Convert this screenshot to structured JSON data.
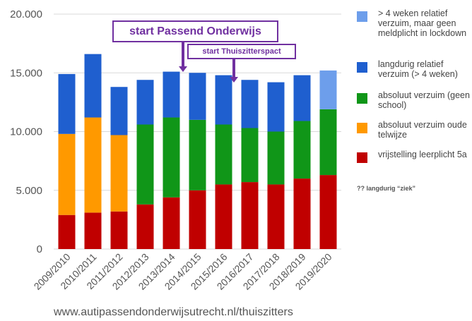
{
  "chart_data": {
    "type": "bar",
    "stacked": true,
    "categories": [
      "2009/2010",
      "2010/2011",
      "2011/2012",
      "2012/2013",
      "2013/2014",
      "2014/2015",
      "2015/2016",
      "2016/2017",
      "2017/2018",
      "2018/2019",
      "2019/2020"
    ],
    "ylim": [
      0,
      20000
    ],
    "yticks": [
      "0",
      "5.000",
      "10.000",
      "15.000",
      "20.000"
    ],
    "ytick_values": [
      0,
      5000,
      10000,
      15000,
      20000
    ],
    "grid": true,
    "legend_position": "right",
    "series": [
      {
        "name": "vrijstelling leerplicht 5a",
        "color": "#c00000",
        "values": [
          2900,
          3100,
          3200,
          3800,
          4400,
          5000,
          5500,
          5700,
          5500,
          6000,
          6300
        ]
      },
      {
        "name": "absoluut verzuim oude telwijze",
        "color": "#ff9900",
        "values": [
          6900,
          8100,
          6500,
          0,
          0,
          0,
          0,
          0,
          0,
          0,
          0
        ]
      },
      {
        "name": "absoluut verzuim (geen school)",
        "color": "#109618",
        "values": [
          0,
          0,
          0,
          6800,
          6800,
          6000,
          5100,
          4600,
          4500,
          4900,
          5600
        ]
      },
      {
        "name": "langdurig relatief verzuim (> 4 weken)",
        "color": "#1f5fcf",
        "values": [
          5100,
          5400,
          4100,
          3800,
          3900,
          4000,
          4200,
          4100,
          4200,
          3900,
          0
        ]
      },
      {
        "name": "> 4 weken relatief verzuim, maar geen meldplicht in lockdown",
        "color": "#6d9eeb",
        "values": [
          0,
          0,
          0,
          0,
          0,
          0,
          0,
          0,
          0,
          0,
          3300
        ]
      }
    ],
    "annotations": [
      {
        "text": "start Passend Onderwijs",
        "at_category": "2014/2015"
      },
      {
        "text": "start Thuiszitterspact",
        "at_category": "2016/2017"
      }
    ]
  },
  "legend": {
    "items": [
      {
        "label": "> 4 weken relatief verzuim, maar geen meldplicht in lockdown",
        "color": "#6d9eeb"
      },
      {
        "label": "langdurig relatief verzuim (> 4 weken)",
        "color": "#1f5fcf"
      },
      {
        "label": "absoluut verzuim (geen school)",
        "color": "#109618"
      },
      {
        "label": "absoluut verzuim oude telwijze",
        "color": "#ff9900"
      },
      {
        "label": "vrijstelling leerplicht 5a",
        "color": "#c00000"
      }
    ],
    "note": "?? langdurig “ziek”"
  },
  "callouts": {
    "passend_onderwijs": "start Passend Onderwijs",
    "thuiszitterspact": "start Thuiszitterspact"
  },
  "source": "www.autipassendonderwijsutrecht.nl/thuiszitters",
  "colors": {
    "callout": "#7030a0",
    "grid": "#d9d9d9",
    "axis_text": "#555555"
  }
}
